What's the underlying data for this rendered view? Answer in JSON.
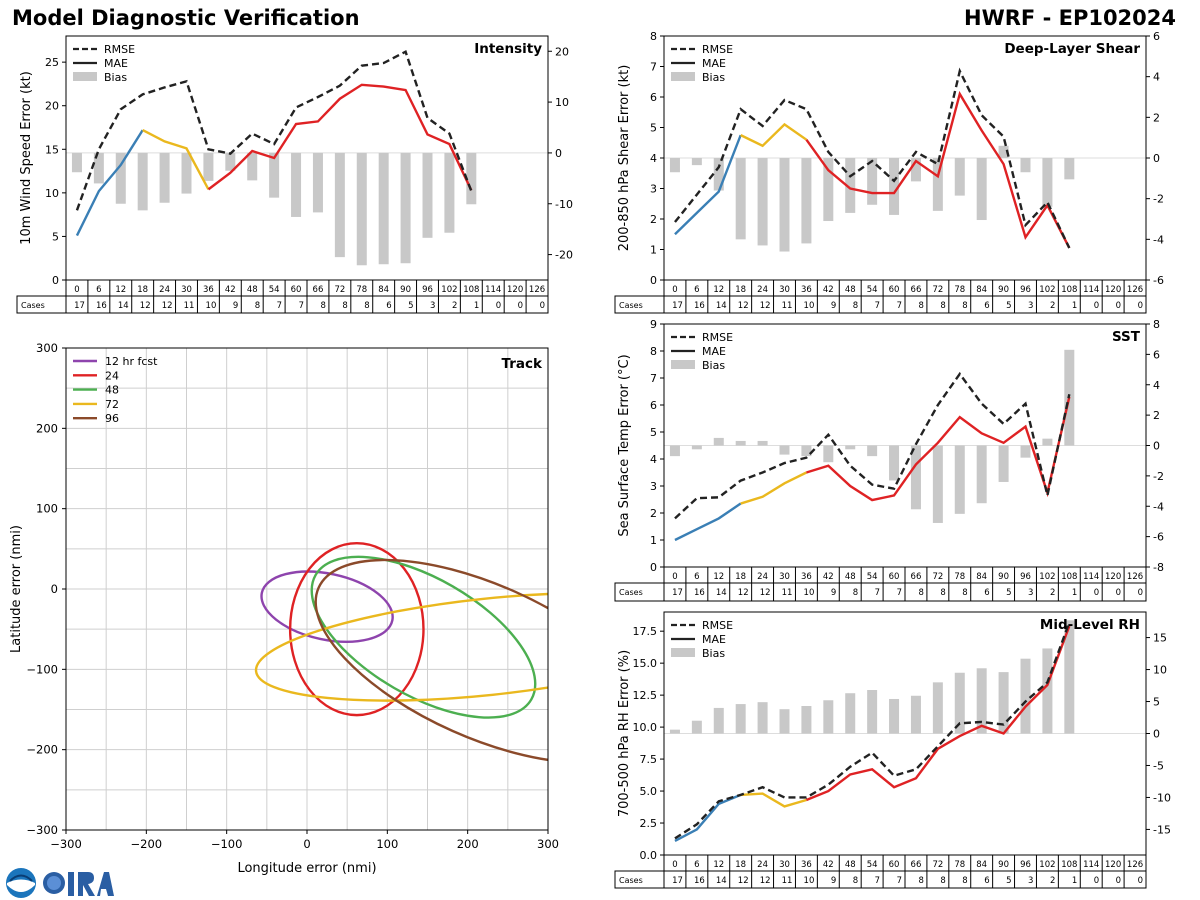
{
  "header": {
    "title_left": "Model Diagnostic Verification",
    "title_right": "HWRF - EP102024"
  },
  "logos": [
    "noaa-logo",
    "cira-logo"
  ],
  "legend_labels": {
    "rmse": "RMSE",
    "mae": "MAE",
    "bias": "Bias"
  },
  "cases_label": "Cases",
  "colors": {
    "blue": "#3a7fb5",
    "yellow": "#eab81e",
    "red": "#df2224",
    "rmse": "#222222",
    "bias": "#c8c8c8"
  },
  "chart_data": [
    {
      "id": "intensity",
      "type": "line",
      "title": "Intensity",
      "ylabel": "10m Wind Speed Error (kt)",
      "ylim": [
        0,
        28
      ],
      "yticks": [
        0,
        5,
        10,
        15,
        20,
        25
      ],
      "y2lim": [
        -25,
        23
      ],
      "y2ticks": [
        -20,
        -10,
        0,
        10,
        20
      ],
      "x": [
        0,
        6,
        12,
        18,
        24,
        30,
        36,
        42,
        48,
        54,
        60,
        66,
        72,
        78,
        84,
        90,
        96,
        102,
        108,
        114,
        120,
        126
      ],
      "rmse": [
        8,
        15,
        19.6,
        21.3,
        22.1,
        22.8,
        15,
        14.5,
        16.8,
        15.6,
        19.8,
        21,
        22.3,
        24.6,
        24.9,
        26.2,
        18.6,
        16.8,
        10.2,
        null,
        null,
        null
      ],
      "mae": [
        5.1,
        10.2,
        13.2,
        17.2,
        15.9,
        15.1,
        10.4,
        12.3,
        14.8,
        14,
        17.9,
        18.2,
        20.8,
        22.4,
        22.2,
        21.8,
        16.7,
        15.6,
        10.3,
        null,
        null,
        null
      ],
      "bias": [
        -3.8,
        -6,
        -10,
        -11.3,
        -9.8,
        -8,
        -5.5,
        -3.5,
        -5.4,
        -8.8,
        -12.6,
        -11.7,
        -20.5,
        -22.1,
        -21.9,
        -21.7,
        -16.7,
        -15.7,
        -10.1,
        null,
        null,
        null
      ],
      "cases": [
        17,
        16,
        14,
        12,
        12,
        11,
        10,
        9,
        8,
        7,
        7,
        8,
        8,
        8,
        6,
        5,
        3,
        2,
        1,
        0,
        0,
        0
      ]
    },
    {
      "id": "shear",
      "type": "line",
      "title": "Deep-Layer Shear",
      "ylabel": "200-850 hPa Shear Error (kt)",
      "ylim": [
        0,
        8
      ],
      "yticks": [
        0,
        1,
        2,
        3,
        4,
        5,
        6,
        7,
        8
      ],
      "y2lim": [
        -6,
        6
      ],
      "y2ticks": [
        -6,
        -4,
        -2,
        0,
        2,
        4,
        6
      ],
      "x": [
        0,
        6,
        12,
        18,
        24,
        30,
        36,
        42,
        48,
        54,
        60,
        66,
        72,
        78,
        84,
        90,
        96,
        102,
        108,
        114,
        120,
        126
      ],
      "rmse": [
        1.9,
        2.8,
        3.7,
        5.6,
        5.05,
        5.9,
        5.6,
        4.2,
        3.4,
        3.9,
        3.25,
        4.2,
        3.8,
        6.85,
        5.4,
        4.7,
        1.8,
        2.55,
        1.05,
        null,
        null,
        null
      ],
      "mae": [
        1.5,
        2.2,
        2.9,
        4.75,
        4.4,
        5.1,
        4.6,
        3.6,
        3,
        2.85,
        2.85,
        3.9,
        3.4,
        6.1,
        4.9,
        3.8,
        1.4,
        2.45,
        1.05,
        null,
        null,
        null
      ],
      "bias": [
        -0.7,
        -0.35,
        -1.6,
        -4,
        -4.3,
        -4.6,
        -4.2,
        -3.1,
        -2.7,
        -2.3,
        -2.8,
        -1.15,
        -2.6,
        -1.85,
        -3.05,
        0.6,
        -0.7,
        -2.4,
        -1.05,
        null,
        null,
        null
      ],
      "cases": [
        17,
        16,
        14,
        12,
        12,
        11,
        10,
        9,
        8,
        7,
        7,
        8,
        8,
        8,
        6,
        5,
        3,
        2,
        1,
        0,
        0,
        0
      ]
    },
    {
      "id": "sst",
      "type": "line",
      "title": "SST",
      "ylabel": "Sea Surface Temp Error (°C)",
      "ylim": [
        0,
        9
      ],
      "yticks": [
        0,
        1,
        2,
        3,
        4,
        5,
        6,
        7,
        8,
        9
      ],
      "y2lim": [
        -8,
        8
      ],
      "y2ticks": [
        -8,
        -6,
        -4,
        -2,
        0,
        2,
        4,
        6,
        8
      ],
      "x": [
        0,
        6,
        12,
        18,
        24,
        30,
        36,
        42,
        48,
        54,
        60,
        66,
        72,
        78,
        84,
        90,
        96,
        102,
        108,
        114,
        120,
        126
      ],
      "rmse": [
        1.8,
        2.55,
        2.58,
        3.2,
        3.5,
        3.85,
        4.05,
        4.9,
        3.75,
        3.05,
        2.9,
        4.55,
        6,
        7.15,
        6.05,
        5.3,
        6.05,
        2.65,
        6.4,
        null,
        null,
        null
      ],
      "mae": [
        1,
        1.4,
        1.8,
        2.35,
        2.6,
        3.1,
        3.5,
        3.75,
        3,
        2.48,
        2.65,
        3.8,
        4.6,
        5.55,
        4.95,
        4.6,
        5.2,
        2.75,
        6.3,
        null,
        null,
        null
      ],
      "bias": [
        -0.7,
        -0.25,
        0.5,
        0.3,
        0.3,
        -0.6,
        -0.7,
        -1.1,
        -0.25,
        -0.7,
        -2.3,
        -4.2,
        -5.1,
        -4.5,
        -3.8,
        -2.4,
        -0.8,
        0.45,
        6.3,
        null,
        null,
        null
      ],
      "cases": [
        17,
        16,
        14,
        12,
        12,
        11,
        10,
        9,
        8,
        7,
        7,
        8,
        8,
        8,
        6,
        5,
        3,
        2,
        1,
        0,
        0,
        0
      ]
    },
    {
      "id": "rh",
      "type": "line",
      "title": "Mid-Level RH",
      "ylabel": "700-500 hPa RH Error (%)",
      "ylim": [
        0,
        19
      ],
      "yticks": [
        0,
        2.5,
        5,
        7.5,
        10,
        12.5,
        15,
        17.5
      ],
      "ytick_labels": [
        "0.0",
        "2.5",
        "5.0",
        "7.5",
        "10.0",
        "12.5",
        "15.0",
        "17.5"
      ],
      "y2lim": [
        -19,
        19
      ],
      "y2ticks": [
        -15,
        -10,
        -5,
        0,
        5,
        10,
        15
      ],
      "x": [
        0,
        6,
        12,
        18,
        24,
        30,
        36,
        42,
        48,
        54,
        60,
        66,
        72,
        78,
        84,
        90,
        96,
        102,
        108,
        114,
        120,
        126
      ],
      "rmse": [
        1.3,
        2.4,
        4.2,
        4.7,
        5.3,
        4.5,
        4.5,
        5.5,
        6.9,
        8,
        6.2,
        6.7,
        8.5,
        10.3,
        10.4,
        10.2,
        12,
        13.5,
        18.2,
        null,
        null,
        null
      ],
      "mae": [
        1.1,
        2,
        4,
        4.7,
        4.8,
        3.8,
        4.3,
        5,
        6.3,
        6.7,
        5.3,
        6,
        8.3,
        9.3,
        10.1,
        9.5,
        11.6,
        13.3,
        17.9,
        null,
        null,
        null
      ],
      "bias": [
        0.6,
        2,
        4,
        4.6,
        4.9,
        3.8,
        4.3,
        5.2,
        6.3,
        6.8,
        5.4,
        5.9,
        8,
        9.5,
        10.2,
        9.6,
        11.7,
        13.3,
        17.7,
        null,
        null,
        null
      ],
      "cases": [
        17,
        16,
        14,
        12,
        12,
        11,
        10,
        9,
        8,
        7,
        7,
        8,
        8,
        8,
        6,
        5,
        3,
        2,
        1,
        0,
        0,
        0
      ]
    },
    {
      "id": "track",
      "type": "scatter",
      "title": "Track",
      "xlabel": "Longitude error (nmi)",
      "ylabel": "Latitude error (nmi)",
      "xlim": [
        -300,
        300
      ],
      "ylim": [
        -300,
        300
      ],
      "xticks": [
        -300,
        -200,
        -100,
        0,
        100,
        200,
        300
      ],
      "yticks": [
        -300,
        -200,
        -100,
        0,
        100,
        200,
        300
      ],
      "legend_location": "top-left",
      "ellipses": [
        {
          "label": "12 hr fcst",
          "color": "#8e44ad",
          "cx": 25,
          "cy": -22,
          "rx": 83,
          "ry": 41,
          "angle": -12
        },
        {
          "label": "24",
          "color": "#df2224",
          "cx": 62,
          "cy": -50,
          "rx": 83,
          "ry": 107,
          "angle": 0
        },
        {
          "label": "48",
          "color": "#4caf50",
          "cx": 145,
          "cy": -60,
          "rx": 155,
          "ry": 73,
          "angle": -30
        },
        {
          "label": "72",
          "color": "#eab81e",
          "cx": 225,
          "cy": -72,
          "rx": 290,
          "ry": 60,
          "angle": 6
        },
        {
          "label": "96",
          "color": "#8b4a2a",
          "cx": 220,
          "cy": -90,
          "rx": 225,
          "ry": 95,
          "angle": -24
        }
      ]
    }
  ]
}
